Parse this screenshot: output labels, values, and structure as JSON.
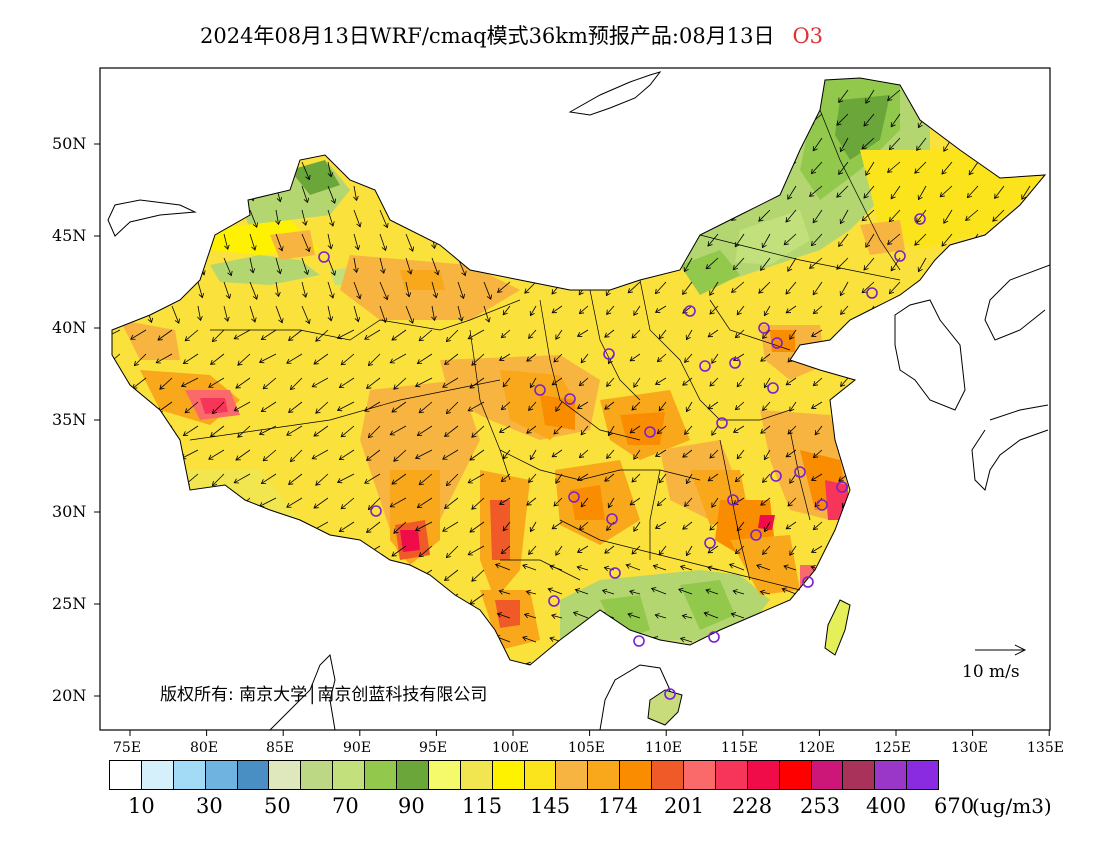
{
  "title": "2024年08月13日WRF/cmaq模式36km预报产品:08月13日",
  "pollutant": "O3",
  "lat_labels": [
    "50N",
    "45N",
    "40N",
    "35N",
    "30N",
    "25N",
    "20N"
  ],
  "lon_labels": [
    "75E",
    "80E",
    "85E",
    "90E",
    "95E",
    "100E",
    "105E",
    "110E",
    "115E",
    "120E",
    "125E",
    "130E",
    "135E"
  ],
  "copyright": "版权所有: 南京大学│南京创蓝科技有限公司",
  "wind_reference": "10 m/s",
  "colorbar": {
    "colors": [
      "#ffffff",
      "#d5effb",
      "#a3daf5",
      "#6fb4e0",
      "#4a8fc4",
      "#dfe8bd",
      "#bcd884",
      "#c2e07c",
      "#92c84c",
      "#6aa63a",
      "#f5fa6a",
      "#f2e650",
      "#fff200",
      "#fbe41c",
      "#f8b440",
      "#f9a81c",
      "#fa8c00",
      "#f05a28",
      "#fb6a6a",
      "#f7345a",
      "#f00c48",
      "#ff0000",
      "#cc1678",
      "#a8325a",
      "#9a36c8",
      "#8a2be2"
    ],
    "labels": [
      "10",
      "30",
      "50",
      "70",
      "90",
      "115",
      "145",
      "174",
      "201",
      "228",
      "253",
      "400",
      "670"
    ],
    "unit": "(ug/m3)"
  }
}
